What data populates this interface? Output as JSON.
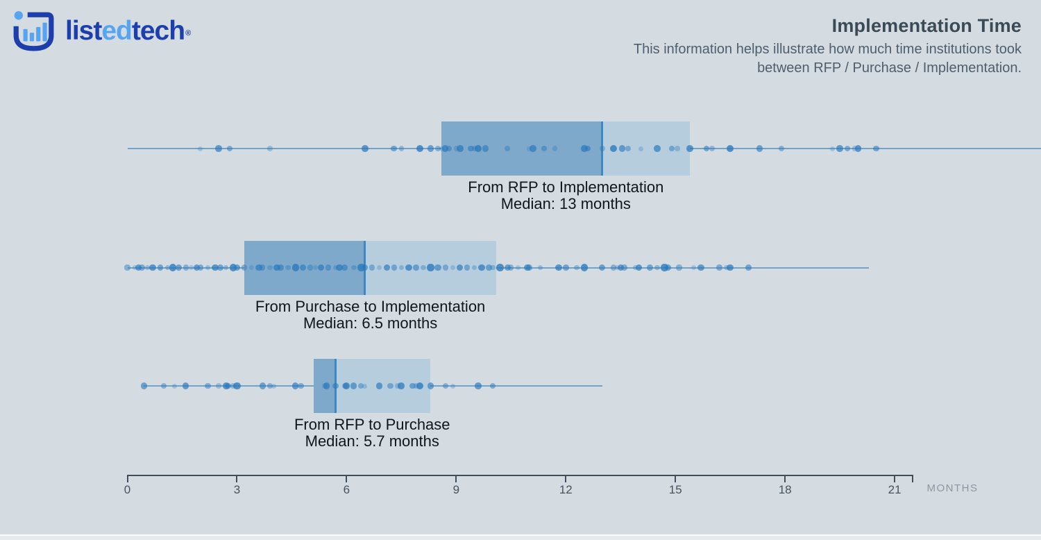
{
  "header": {
    "logo": {
      "word_parts": [
        "list",
        "ed",
        "tech"
      ],
      "reg_mark": "®"
    },
    "title": "Implementation Time",
    "subtitle_line1": "This information helps illustrate how much time institutions took",
    "subtitle_line2": "between RFP / Purchase / Implementation."
  },
  "colors": {
    "background": "#d4dbe1",
    "box_dark": "#7ea9ca",
    "box_light": "#b6cdde",
    "median_line": "#3e88c1",
    "whisker": "#6fa3c8",
    "dot": "#2878bd",
    "logo_dark_blue": "#1d3fae",
    "logo_light_blue": "#57a5f1",
    "axis": "#414e5a",
    "title_text": "#3b4a57",
    "label_text": "#10161c"
  },
  "chart_data": {
    "type": "boxplot",
    "orientation": "horizontal",
    "unit": "months",
    "axis": {
      "min": 0,
      "max": 21,
      "ticks": [
        0,
        3,
        6,
        9,
        12,
        15,
        18,
        21
      ],
      "axis_end": 21.5,
      "label": "MONTHS",
      "grid": false
    },
    "series": [
      {
        "name": "From RFP to Implementation",
        "median_label": "Median: 13 months",
        "q1": 8.6,
        "median": 13,
        "q3": 15.4,
        "whisker_min": 0,
        "whisker_max": 25,
        "points": [
          2.0,
          2.5,
          2.8,
          3.9,
          6.5,
          7.3,
          7.5,
          8.0,
          8.3,
          8.5,
          8.6,
          8.7,
          8.8,
          9.0,
          9.1,
          9.4,
          9.5,
          9.6,
          9.8,
          10.4,
          11.0,
          11.1,
          11.4,
          11.7,
          12.5,
          12.6,
          13.0,
          13.3,
          13.55,
          13.7,
          14.05,
          14.5,
          14.9,
          15.05,
          15.4,
          15.85,
          16.0,
          16.5,
          17.3,
          17.9,
          19.3,
          19.5,
          19.7,
          19.9,
          20.0,
          20.5
        ]
      },
      {
        "name": "From Purchase to Implementation",
        "median_label": "Median: 6.5 months",
        "q1": 3.2,
        "median": 6.5,
        "q3": 10.1,
        "whisker_min": 0,
        "whisker_max": 20.3,
        "points": [
          0.0,
          0.2,
          0.3,
          0.4,
          0.55,
          0.7,
          0.9,
          1.1,
          1.25,
          1.4,
          1.6,
          1.75,
          1.9,
          2.0,
          2.2,
          2.4,
          2.55,
          2.7,
          2.9,
          3.0,
          3.2,
          3.4,
          3.6,
          3.7,
          3.9,
          4.1,
          4.2,
          4.4,
          4.6,
          4.8,
          5.0,
          5.15,
          5.3,
          5.5,
          5.7,
          5.8,
          5.95,
          6.2,
          6.4,
          6.5,
          6.7,
          6.9,
          7.1,
          7.3,
          7.5,
          7.7,
          7.9,
          8.1,
          8.3,
          8.5,
          8.7,
          8.9,
          9.1,
          9.3,
          9.5,
          9.7,
          9.9,
          10.0,
          10.2,
          10.4,
          10.5,
          10.7,
          10.95,
          11.0,
          11.3,
          11.8,
          12.0,
          12.3,
          12.5,
          13.0,
          13.3,
          13.4,
          13.5,
          13.6,
          13.9,
          14.0,
          14.3,
          14.5,
          14.7,
          14.8,
          15.1,
          15.5,
          15.7,
          16.2,
          16.4,
          16.5,
          17.0
        ]
      },
      {
        "name": "From RFP to Purchase",
        "median_label": "Median: 5.7 months",
        "q1": 5.1,
        "median": 5.7,
        "q3": 8.3,
        "whisker_min": 0.45,
        "whisker_max": 13,
        "points": [
          0.45,
          1.0,
          1.3,
          1.6,
          2.2,
          2.5,
          2.7,
          2.75,
          2.9,
          3.0,
          3.7,
          3.9,
          4.0,
          4.6,
          4.75,
          5.4,
          5.45,
          5.7,
          5.95,
          6.0,
          6.2,
          6.4,
          6.5,
          6.9,
          7.2,
          7.4,
          7.5,
          7.8,
          7.9,
          8.0,
          8.3,
          8.7,
          8.9,
          9.6,
          10.0
        ]
      }
    ]
  }
}
